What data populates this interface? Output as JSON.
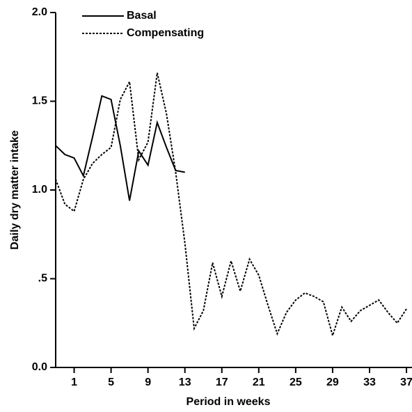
{
  "chart_data": {
    "type": "line",
    "xlabel": "Period in weeks",
    "ylabel": "Daily dry matter intake",
    "x": [
      -1,
      0,
      1,
      2,
      3,
      4,
      5,
      6,
      7,
      8,
      9,
      10,
      11,
      12,
      13,
      14,
      15,
      16,
      17,
      18,
      19,
      20,
      21,
      22,
      23,
      24,
      25,
      26,
      27,
      28,
      29,
      30,
      31,
      32,
      33,
      34,
      35,
      36,
      37
    ],
    "series": [
      {
        "name": "Basal",
        "color": "#000000",
        "dash": "none",
        "values": [
          1.25,
          1.2,
          1.18,
          1.08,
          1.3,
          1.53,
          1.51,
          1.25,
          0.94,
          1.22,
          1.14,
          1.38,
          1.24,
          1.11,
          1.1,
          null,
          null,
          null,
          null,
          null,
          null,
          null,
          null,
          null,
          null,
          null,
          null,
          null,
          null,
          null,
          null,
          null,
          null,
          null,
          null,
          null,
          null,
          null,
          null
        ]
      },
      {
        "name": "Compensating",
        "color": "#000000",
        "dash": "3,2",
        "values": [
          1.06,
          0.92,
          0.88,
          1.06,
          1.15,
          1.2,
          1.24,
          1.51,
          1.61,
          1.17,
          1.27,
          1.66,
          1.43,
          1.1,
          0.7,
          0.22,
          0.32,
          0.59,
          0.4,
          0.6,
          0.43,
          0.61,
          0.52,
          0.35,
          0.19,
          0.31,
          0.38,
          0.42,
          0.4,
          0.37,
          0.18,
          0.34,
          0.26,
          0.32,
          0.35,
          0.38,
          0.31,
          0.25,
          0.33
        ]
      }
    ],
    "xlim": [
      -1,
      37.6
    ],
    "xticks": [
      1,
      5,
      9,
      13,
      17,
      21,
      25,
      29,
      33,
      37
    ],
    "ylim": [
      0,
      2
    ],
    "yticks": [
      {
        "value": 0,
        "label": "0.0"
      },
      {
        "value": 0.5,
        "label": ".5"
      },
      {
        "value": 1,
        "label": "1.0"
      },
      1.5,
      {
        "value": 2,
        "label": "2.0"
      }
    ]
  }
}
